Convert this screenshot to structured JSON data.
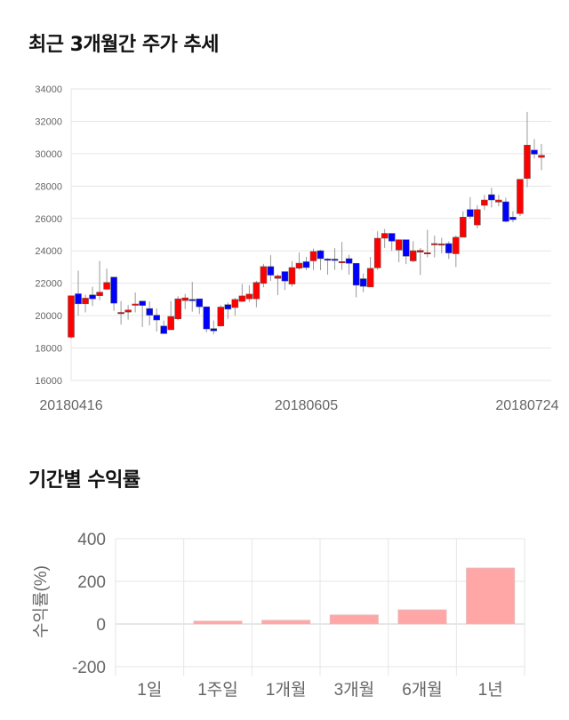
{
  "titles": {
    "price": "최근 3개월간 주가 추세",
    "returns": "기간별 수익률"
  },
  "colors": {
    "up": "#ff0000",
    "down": "#0000ff",
    "bar": "#ffa6a6",
    "grid": "#e6e6e6",
    "axis_text": "#666666"
  },
  "chart_data": [
    {
      "type": "candlestick",
      "title": "최근 3개월간 주가 추세",
      "ylim": [
        16000,
        34000
      ],
      "yticks": [
        16000,
        18000,
        20000,
        22000,
        24000,
        26000,
        28000,
        30000,
        32000,
        34000
      ],
      "xticks": [
        {
          "index": 0,
          "label": "20180416"
        },
        {
          "index": 33,
          "label": "20180605"
        },
        {
          "index": 64,
          "label": "20180724"
        }
      ],
      "grid": true,
      "ohlc": [
        [
          18670,
          21230,
          18580,
          21230
        ],
        [
          21350,
          22780,
          20000,
          20730
        ],
        [
          20730,
          21300,
          20200,
          21080
        ],
        [
          21280,
          21780,
          20600,
          21040
        ],
        [
          21230,
          23380,
          20950,
          21450
        ],
        [
          21630,
          22900,
          21600,
          22050
        ],
        [
          22380,
          22380,
          20300,
          20770
        ],
        [
          20170,
          20900,
          19450,
          20200
        ],
        [
          20220,
          20650,
          19750,
          20350
        ],
        [
          20700,
          21430,
          20200,
          20720
        ],
        [
          20900,
          20900,
          19300,
          20630
        ],
        [
          20440,
          20880,
          19400,
          20030
        ],
        [
          20030,
          20450,
          19020,
          19730
        ],
        [
          19360,
          19700,
          18890,
          18890
        ],
        [
          19130,
          20900,
          19100,
          19950
        ],
        [
          19800,
          21200,
          19720,
          21040
        ],
        [
          20930,
          21350,
          20400,
          21100
        ],
        [
          21000,
          22080,
          20250,
          20980
        ],
        [
          21040,
          21040,
          20100,
          20550
        ],
        [
          20550,
          20550,
          18960,
          19180
        ],
        [
          19200,
          19700,
          18850,
          19060
        ],
        [
          19360,
          20650,
          19330,
          20530
        ],
        [
          20680,
          20800,
          19800,
          20400
        ],
        [
          20500,
          21100,
          20000,
          21000
        ],
        [
          20880,
          21950,
          20850,
          21220
        ],
        [
          21040,
          21880,
          20850,
          21330
        ],
        [
          21040,
          22150,
          20520,
          22050
        ],
        [
          21990,
          23200,
          21750,
          23030
        ],
        [
          23030,
          23730,
          22150,
          22500
        ],
        [
          22300,
          22550,
          21270,
          22450
        ],
        [
          22720,
          22720,
          21580,
          22140
        ],
        [
          21950,
          23370,
          21780,
          22970
        ],
        [
          22930,
          23900,
          22830,
          23240
        ],
        [
          23330,
          23630,
          22810,
          22970
        ],
        [
          23380,
          24140,
          22810,
          23960
        ],
        [
          24010,
          24060,
          22810,
          23520
        ],
        [
          23500,
          23550,
          22530,
          23480
        ],
        [
          23490,
          24170,
          22830,
          23470
        ],
        [
          23300,
          24550,
          22830,
          23340
        ],
        [
          23520,
          23760,
          22530,
          23230
        ],
        [
          23230,
          23230,
          21130,
          21880
        ],
        [
          22280,
          22600,
          21450,
          21810
        ],
        [
          21770,
          23630,
          21770,
          22920
        ],
        [
          22950,
          25210,
          22830,
          24780
        ],
        [
          24780,
          25350,
          24180,
          25080
        ],
        [
          25080,
          25080,
          24000,
          24600
        ],
        [
          24050,
          24690,
          23300,
          24690
        ],
        [
          24690,
          24690,
          23180,
          23670
        ],
        [
          23380,
          24600,
          23300,
          24010
        ],
        [
          23920,
          24180,
          22500,
          24030
        ],
        [
          23840,
          25300,
          23600,
          23890
        ],
        [
          24450,
          24940,
          23600,
          24450
        ],
        [
          24400,
          24800,
          23840,
          24430
        ],
        [
          24450,
          24580,
          23500,
          23870
        ],
        [
          23820,
          24950,
          23000,
          24840
        ],
        [
          24840,
          26450,
          24840,
          26080
        ],
        [
          26550,
          27320,
          25990,
          26120
        ],
        [
          25600,
          26820,
          25390,
          26550
        ],
        [
          26810,
          27460,
          26520,
          27140
        ],
        [
          27470,
          27900,
          26680,
          27140
        ],
        [
          27010,
          27460,
          26750,
          27140
        ],
        [
          27030,
          27280,
          25760,
          25820
        ],
        [
          26080,
          26450,
          25760,
          25930
        ],
        [
          26300,
          28420,
          26150,
          28420
        ],
        [
          28470,
          32580,
          27940,
          30530
        ],
        [
          30220,
          30900,
          29700,
          29970
        ],
        [
          29770,
          30600,
          28980,
          29900
        ]
      ],
      "ohlc_order": [
        "open",
        "high",
        "low",
        "close"
      ]
    },
    {
      "type": "bar",
      "title": "기간별 수익률",
      "ylabel": "수익률(%)",
      "ylim": [
        -200,
        400
      ],
      "yticks": [
        -200,
        0,
        200,
        400
      ],
      "categories": [
        "1일",
        "1주일",
        "1개월",
        "3개월",
        "6개월",
        "1년"
      ],
      "values": [
        0,
        13,
        17,
        42,
        66,
        262
      ],
      "grid": true
    }
  ]
}
